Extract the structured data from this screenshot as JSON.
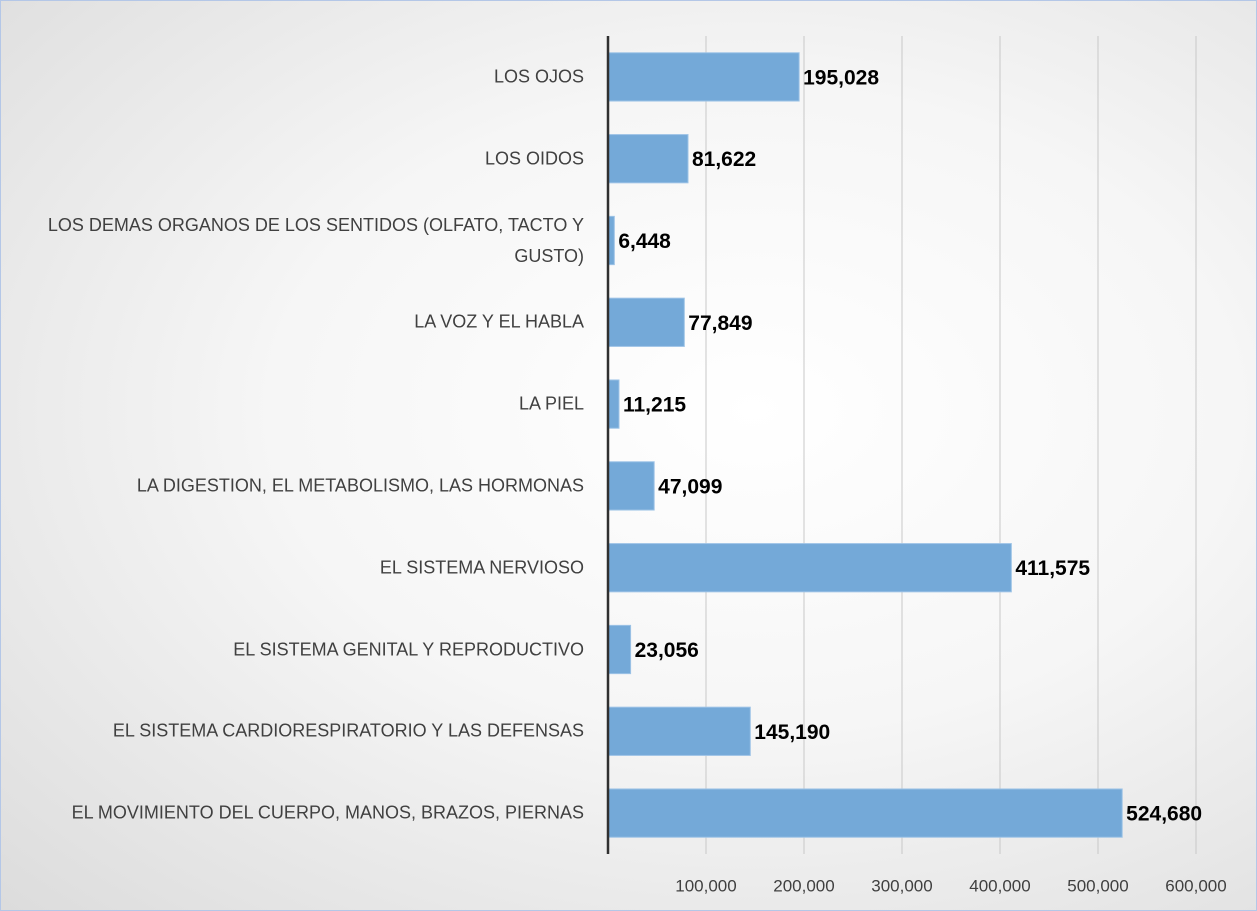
{
  "chart_data": {
    "type": "barh",
    "categories": [
      "LOS OJOS",
      "LOS OIDOS",
      "LOS DEMAS ORGANOS DE LOS SENTIDOS (OLFATO, TACTO Y GUSTO)",
      "LA VOZ Y EL HABLA",
      "LA PIEL",
      "LA DIGESTION, EL METABOLISMO, LAS HORMONAS",
      "EL SISTEMA NERVIOSO",
      "EL SISTEMA GENITAL Y REPRODUCTIVO",
      "EL SISTEMA CARDIORESPIRATORIO Y LAS DEFENSAS",
      "EL MOVIMIENTO DEL CUERPO, MANOS, BRAZOS, PIERNAS"
    ],
    "values": [
      195028,
      81622,
      6448,
      77849,
      11215,
      47099,
      411575,
      23056,
      145190,
      524680
    ],
    "value_labels": [
      "195,028",
      "81,622",
      "6,448",
      "77,849",
      "11,215",
      "47,099",
      "411,575",
      "23,056",
      "145,190",
      "524,680"
    ],
    "color": "#74a9d8",
    "xlim": [
      0,
      600000
    ],
    "xticks": [
      {
        "value": 100000,
        "label": "100,000"
      },
      {
        "value": 200000,
        "label": "200,000"
      },
      {
        "value": 300000,
        "label": "300,000"
      },
      {
        "value": 400000,
        "label": "400,000"
      },
      {
        "value": 500000,
        "label": "500,000"
      },
      {
        "value": 600000,
        "label": "600,000"
      }
    ],
    "grid": true
  }
}
